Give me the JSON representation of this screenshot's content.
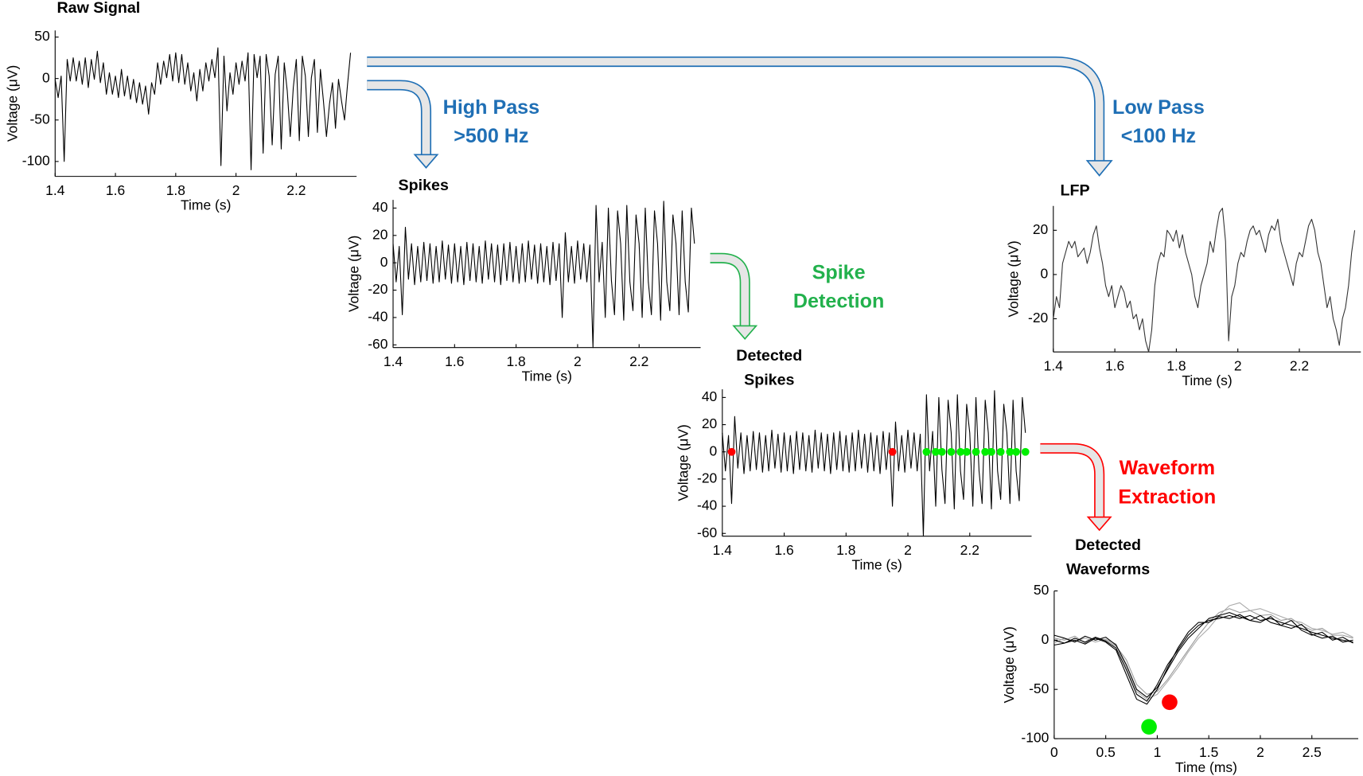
{
  "chart_data": [
    {
      "type": "line",
      "title": "Raw Signal",
      "xlabel": "Time (s)",
      "ylabel": "Voltage (μV)",
      "color": "#000000",
      "xlim": [
        1.4,
        2.4
      ],
      "xticks": [
        1.4,
        1.6,
        1.8,
        2,
        2.2
      ],
      "ylim": [
        -118,
        58
      ],
      "yticks": [
        50,
        0,
        -50,
        -100
      ],
      "x": [
        1.4,
        1.41,
        1.42,
        1.43,
        1.44,
        1.45,
        1.46,
        1.47,
        1.48,
        1.49,
        1.5,
        1.51,
        1.52,
        1.53,
        1.54,
        1.55,
        1.56,
        1.57,
        1.58,
        1.59,
        1.6,
        1.61,
        1.62,
        1.63,
        1.64,
        1.65,
        1.66,
        1.67,
        1.68,
        1.69,
        1.7,
        1.71,
        1.72,
        1.73,
        1.74,
        1.75,
        1.76,
        1.77,
        1.78,
        1.79,
        1.8,
        1.81,
        1.82,
        1.83,
        1.84,
        1.85,
        1.86,
        1.87,
        1.88,
        1.89,
        1.9,
        1.91,
        1.92,
        1.93,
        1.94,
        1.95,
        1.96,
        1.97,
        1.98,
        1.99,
        2,
        2.01,
        2.02,
        2.03,
        2.04,
        2.05,
        2.06,
        2.07,
        2.08,
        2.09,
        2.1,
        2.11,
        2.12,
        2.13,
        2.14,
        2.15,
        2.16,
        2.17,
        2.18,
        2.19,
        2.2,
        2.21,
        2.22,
        2.23,
        2.24,
        2.25,
        2.26,
        2.27,
        2.28,
        2.29,
        2.3,
        2.31,
        2.32,
        2.33,
        2.34,
        2.35,
        2.36,
        2.37,
        2.38
      ],
      "values": [
        -1,
        -23,
        3,
        -100,
        23,
        -3,
        25,
        -3,
        21,
        -7,
        25,
        -11,
        23,
        -1,
        33,
        -5,
        19,
        -19,
        7,
        -19,
        3,
        -23,
        11,
        -21,
        3,
        -25,
        -1,
        -29,
        -5,
        -31,
        -9,
        -43,
        -5,
        -19,
        19,
        -7,
        21,
        1,
        29,
        -3,
        31,
        -5,
        29,
        -7,
        19,
        -15,
        7,
        -27,
        11,
        -15,
        19,
        -3,
        23,
        1,
        37,
        -105,
        27,
        -39,
        7,
        -19,
        19,
        -7,
        21,
        -3,
        31,
        -110,
        29,
        1,
        27,
        -90,
        29,
        3,
        -80,
        5,
        27,
        -85,
        19,
        -15,
        -70,
        -11,
        23,
        -75,
        27,
        3,
        -70,
        1,
        23,
        -65,
        11,
        -27,
        -70,
        -31,
        -5,
        -60,
        -1,
        -27,
        -50,
        -7,
        31
      ]
    },
    {
      "type": "line",
      "title": "Spikes",
      "xlabel": "Time (s)",
      "ylabel": "Voltage (μV)",
      "color": "#000000",
      "xlim": [
        1.4,
        2.4
      ],
      "xticks": [
        1.4,
        1.6,
        1.8,
        2,
        2.2
      ],
      "ylim": [
        -62,
        46
      ],
      "yticks": [
        40,
        20,
        0,
        -20,
        -40,
        -60
      ],
      "x": [
        1.4,
        1.41,
        1.42,
        1.43,
        1.44,
        1.45,
        1.46,
        1.47,
        1.48,
        1.49,
        1.5,
        1.51,
        1.52,
        1.53,
        1.54,
        1.55,
        1.56,
        1.57,
        1.58,
        1.59,
        1.6,
        1.61,
        1.62,
        1.63,
        1.64,
        1.65,
        1.66,
        1.67,
        1.68,
        1.69,
        1.7,
        1.71,
        1.72,
        1.73,
        1.74,
        1.75,
        1.76,
        1.77,
        1.78,
        1.79,
        1.8,
        1.81,
        1.82,
        1.83,
        1.84,
        1.85,
        1.86,
        1.87,
        1.88,
        1.89,
        1.9,
        1.91,
        1.92,
        1.93,
        1.94,
        1.95,
        1.96,
        1.97,
        1.98,
        1.99,
        2,
        2.01,
        2.02,
        2.03,
        2.04,
        2.05,
        2.06,
        2.07,
        2.08,
        2.09,
        2.1,
        2.11,
        2.12,
        2.13,
        2.14,
        2.15,
        2.16,
        2.17,
        2.18,
        2.19,
        2.2,
        2.21,
        2.22,
        2.23,
        2.24,
        2.25,
        2.26,
        2.27,
        2.28,
        2.29,
        2.3,
        2.31,
        2.32,
        2.33,
        2.34,
        2.35,
        2.36,
        2.37,
        2.38
      ],
      "values": [
        14,
        -14,
        12,
        -38,
        26,
        -12,
        14,
        -16,
        12,
        -14,
        15,
        -13,
        14,
        -15,
        12,
        -14,
        16,
        -12,
        13,
        -15,
        14,
        -14,
        12,
        -16,
        15,
        -13,
        14,
        -14,
        12,
        -15,
        16,
        -12,
        14,
        -14,
        13,
        -16,
        14,
        -13,
        15,
        -14,
        12,
        -15,
        14,
        -14,
        16,
        -12,
        13,
        -15,
        14,
        -14,
        12,
        -16,
        15,
        -13,
        14,
        -40,
        22,
        -14,
        12,
        -15,
        16,
        -12,
        14,
        -14,
        13,
        -62,
        42,
        -14,
        15,
        -40,
        40,
        -13,
        -38,
        38,
        14,
        -42,
        42,
        -14,
        -35,
        35,
        14,
        -40,
        40,
        -14,
        -38,
        38,
        14,
        -42,
        45,
        -14,
        -35,
        35,
        14,
        -38,
        38,
        -14,
        -36,
        40,
        14
      ]
    },
    {
      "type": "line",
      "title": "LFP",
      "xlabel": "Time (s)",
      "ylabel": "Voltage (μV)",
      "color": "#333333",
      "xlim": [
        1.4,
        2.4
      ],
      "xticks": [
        1.4,
        1.6,
        1.8,
        2,
        2.2
      ],
      "ylim": [
        -35,
        31
      ],
      "yticks": [
        20,
        0,
        -20
      ],
      "x": [
        1.4,
        1.41,
        1.42,
        1.43,
        1.44,
        1.45,
        1.46,
        1.47,
        1.48,
        1.49,
        1.5,
        1.51,
        1.52,
        1.53,
        1.54,
        1.55,
        1.56,
        1.57,
        1.58,
        1.59,
        1.6,
        1.61,
        1.62,
        1.63,
        1.64,
        1.65,
        1.66,
        1.67,
        1.68,
        1.69,
        1.7,
        1.71,
        1.72,
        1.73,
        1.74,
        1.75,
        1.76,
        1.77,
        1.78,
        1.79,
        1.8,
        1.81,
        1.82,
        1.83,
        1.84,
        1.85,
        1.86,
        1.87,
        1.88,
        1.89,
        1.9,
        1.91,
        1.92,
        1.93,
        1.94,
        1.95,
        1.96,
        1.97,
        1.98,
        1.99,
        2,
        2.01,
        2.02,
        2.03,
        2.04,
        2.05,
        2.06,
        2.07,
        2.08,
        2.09,
        2.1,
        2.11,
        2.12,
        2.13,
        2.14,
        2.15,
        2.16,
        2.17,
        2.18,
        2.19,
        2.2,
        2.21,
        2.22,
        2.23,
        2.24,
        2.25,
        2.26,
        2.27,
        2.28,
        2.29,
        2.3,
        2.31,
        2.32,
        2.33,
        2.34,
        2.35,
        2.36,
        2.37,
        2.38
      ],
      "values": [
        -20,
        -10,
        -15,
        5,
        10,
        15,
        12,
        15,
        8,
        10,
        12,
        5,
        10,
        18,
        22,
        12,
        5,
        -5,
        -10,
        -5,
        -15,
        -10,
        -5,
        -8,
        -15,
        -12,
        -20,
        -18,
        -25,
        -20,
        -30,
        -35,
        -25,
        -5,
        5,
        10,
        8,
        20,
        18,
        15,
        20,
        12,
        18,
        10,
        5,
        0,
        -10,
        -15,
        -5,
        0,
        5,
        15,
        10,
        20,
        28,
        30,
        15,
        -30,
        -10,
        -5,
        5,
        10,
        8,
        15,
        20,
        22,
        18,
        20,
        15,
        10,
        18,
        22,
        20,
        25,
        15,
        10,
        5,
        0,
        -5,
        5,
        10,
        8,
        15,
        22,
        25,
        20,
        10,
        5,
        -5,
        -15,
        -10,
        -20,
        -25,
        -32,
        -20,
        -15,
        -5,
        10,
        20
      ]
    },
    {
      "type": "line",
      "title": [
        "Detected",
        "Spikes"
      ],
      "xlabel": "Time (s)",
      "ylabel": "Voltage (μV)",
      "color": "#000000",
      "xlim": [
        1.4,
        2.4
      ],
      "xticks": [
        1.4,
        1.6,
        1.8,
        2,
        2.2
      ],
      "ylim": [
        -62,
        46
      ],
      "yticks": [
        40,
        20,
        0,
        -20,
        -40,
        -60
      ],
      "x": [
        1.4,
        1.41,
        1.42,
        1.43,
        1.44,
        1.45,
        1.46,
        1.47,
        1.48,
        1.49,
        1.5,
        1.51,
        1.52,
        1.53,
        1.54,
        1.55,
        1.56,
        1.57,
        1.58,
        1.59,
        1.6,
        1.61,
        1.62,
        1.63,
        1.64,
        1.65,
        1.66,
        1.67,
        1.68,
        1.69,
        1.7,
        1.71,
        1.72,
        1.73,
        1.74,
        1.75,
        1.76,
        1.77,
        1.78,
        1.79,
        1.8,
        1.81,
        1.82,
        1.83,
        1.84,
        1.85,
        1.86,
        1.87,
        1.88,
        1.89,
        1.9,
        1.91,
        1.92,
        1.93,
        1.94,
        1.95,
        1.96,
        1.97,
        1.98,
        1.99,
        2,
        2.01,
        2.02,
        2.03,
        2.04,
        2.05,
        2.06,
        2.07,
        2.08,
        2.09,
        2.1,
        2.11,
        2.12,
        2.13,
        2.14,
        2.15,
        2.16,
        2.17,
        2.18,
        2.19,
        2.2,
        2.21,
        2.22,
        2.23,
        2.24,
        2.25,
        2.26,
        2.27,
        2.28,
        2.29,
        2.3,
        2.31,
        2.32,
        2.33,
        2.34,
        2.35,
        2.36,
        2.37,
        2.38
      ],
      "values": [
        14,
        -14,
        12,
        -38,
        26,
        -12,
        14,
        -16,
        12,
        -14,
        15,
        -13,
        14,
        -15,
        12,
        -14,
        16,
        -12,
        13,
        -15,
        14,
        -14,
        12,
        -16,
        15,
        -13,
        14,
        -14,
        12,
        -15,
        16,
        -12,
        14,
        -14,
        13,
        -16,
        14,
        -13,
        15,
        -14,
        12,
        -15,
        14,
        -14,
        16,
        -12,
        13,
        -15,
        14,
        -14,
        12,
        -16,
        15,
        -13,
        14,
        -40,
        22,
        -14,
        12,
        -15,
        16,
        -12,
        14,
        -14,
        13,
        -62,
        42,
        -14,
        15,
        -40,
        40,
        -13,
        -38,
        38,
        14,
        -42,
        42,
        -14,
        -35,
        35,
        14,
        -40,
        40,
        -14,
        -38,
        38,
        14,
        -42,
        45,
        -14,
        -35,
        35,
        14,
        -38,
        38,
        -14,
        -36,
        40,
        14
      ],
      "markers": [
        {
          "color": "#ff0000",
          "x": [
            1.43,
            1.95
          ],
          "values": [
            0,
            0
          ]
        },
        {
          "color": "#00ee00",
          "x": [
            2.06,
            2.09,
            2.11,
            2.14,
            2.17,
            2.19,
            2.22,
            2.25,
            2.27,
            2.3,
            2.33,
            2.35,
            2.38
          ],
          "values": [
            0,
            0,
            0,
            0,
            0,
            0,
            0,
            0,
            0,
            0,
            0,
            0,
            0
          ]
        }
      ]
    },
    {
      "type": "line",
      "title": [
        "Detected",
        "Waveforms"
      ],
      "xlabel": "Time (ms)",
      "ylabel": "Voltage (μV)",
      "xlim": [
        0,
        2.95
      ],
      "xticks": [
        0,
        0.5,
        1,
        1.5,
        2,
        2.5
      ],
      "ylim": [
        -100,
        50
      ],
      "yticks": [
        50,
        0,
        -50,
        -100
      ],
      "x": [
        0,
        0.1,
        0.2,
        0.3,
        0.4,
        0.5,
        0.6,
        0.7,
        0.8,
        0.9,
        1,
        1.1,
        1.2,
        1.3,
        1.4,
        1.5,
        1.6,
        1.7,
        1.8,
        1.9,
        2,
        2.1,
        2.2,
        2.3,
        2.4,
        2.5,
        2.6,
        2.7,
        2.8,
        2.9
      ],
      "series": [
        {
          "color": "#999999",
          "values": [
            2,
            0,
            4,
            -3,
            3,
            0,
            -6,
            -20,
            -45,
            -55,
            -52,
            -40,
            -25,
            -10,
            5,
            18,
            28,
            32,
            28,
            30,
            25,
            26,
            20,
            22,
            15,
            10,
            12,
            5,
            5,
            2
          ]
        },
        {
          "color": "#aaaaaa",
          "values": [
            -3,
            2,
            -1,
            2,
            -2,
            1,
            -4,
            -28,
            -52,
            -60,
            -55,
            -42,
            -28,
            -12,
            2,
            12,
            25,
            35,
            38,
            30,
            32,
            28,
            24,
            20,
            18,
            12,
            10,
            6,
            8,
            3
          ]
        },
        {
          "color": "#000000",
          "values": [
            0,
            -3,
            2,
            -2,
            3,
            -1,
            -8,
            -30,
            -55,
            -62,
            -45,
            -25,
            -10,
            5,
            15,
            20,
            22,
            25,
            22,
            25,
            20,
            22,
            18,
            15,
            12,
            8,
            5,
            2,
            0,
            -2
          ]
        },
        {
          "color": "#000000",
          "values": [
            5,
            2,
            -2,
            4,
            0,
            3,
            -5,
            -25,
            -50,
            -58,
            -48,
            -30,
            -12,
            2,
            12,
            22,
            25,
            28,
            24,
            20,
            25,
            18,
            15,
            20,
            10,
            5,
            8,
            0,
            3,
            -3
          ]
        },
        {
          "color": "#000000",
          "values": [
            -5,
            -3,
            0,
            -4,
            2,
            -2,
            -10,
            -35,
            -60,
            -65,
            -50,
            -28,
            -8,
            8,
            18,
            18,
            24,
            22,
            26,
            20,
            18,
            24,
            15,
            12,
            16,
            6,
            2,
            4,
            -2,
            0
          ]
        }
      ],
      "markers": [
        {
          "color": "#00ee00",
          "x": [
            0.92
          ],
          "values": [
            -88
          ]
        },
        {
          "color": "#ff0000",
          "x": [
            1.12
          ],
          "values": [
            -63
          ]
        }
      ]
    }
  ],
  "flow_labels": [
    {
      "lines": [
        "High Pass",
        ">500 Hz"
      ],
      "color": "#1f6fb5"
    },
    {
      "lines": [
        "Low Pass",
        "<100 Hz"
      ],
      "color": "#1f6fb5"
    },
    {
      "lines": [
        "Spike",
        "Detection"
      ],
      "color": "#22b14c"
    },
    {
      "lines": [
        "Waveform",
        "Extraction"
      ],
      "color": "#ff0000"
    }
  ]
}
